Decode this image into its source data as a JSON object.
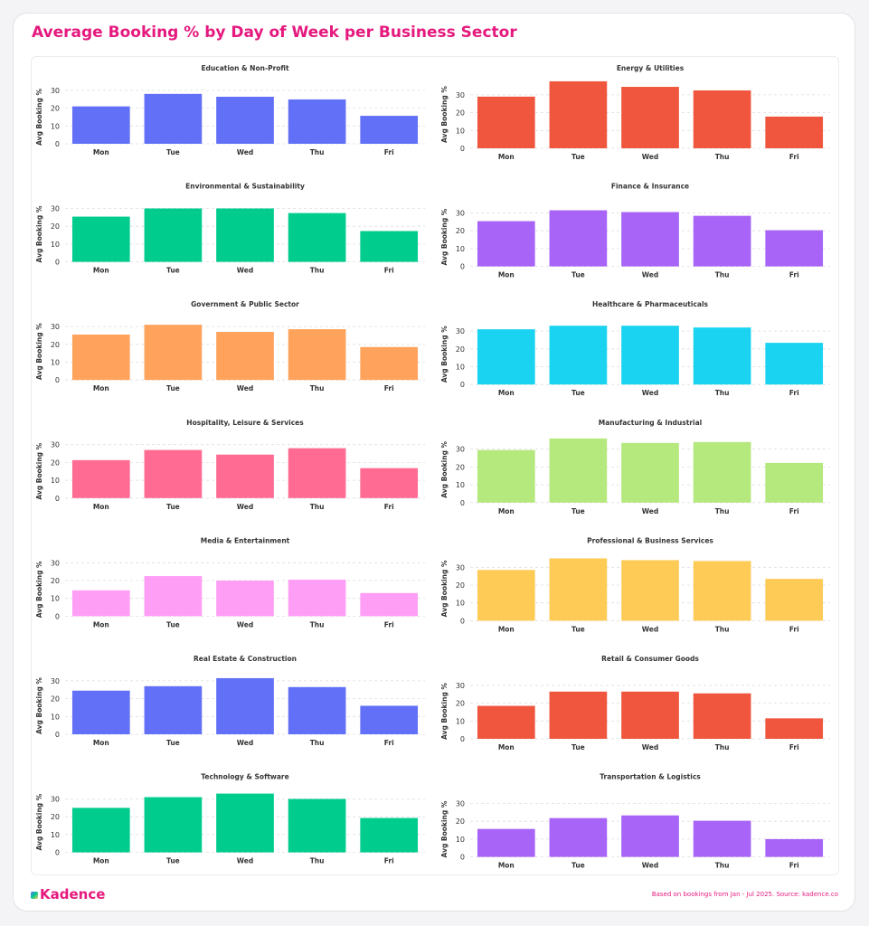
{
  "title": "Average Booking % by Day of Week per Business Sector",
  "footer": {
    "logo": "Kadence",
    "note": "Based on bookings from Jan - Jul 2025. Source: kadence.co"
  },
  "chart_data": [
    {
      "type": "bar",
      "title": "Education & Non-Profit",
      "y_label": "Avg Booking %",
      "categories": [
        "Mon",
        "Tue",
        "Wed",
        "Thu",
        "Fri"
      ],
      "values": [
        21,
        28,
        26.4,
        24.9,
        15.7
      ],
      "color": "#6170f6",
      "ylim": [
        0,
        30
      ],
      "yticks": [
        0,
        10,
        20,
        30
      ],
      "grid": true
    },
    {
      "type": "bar",
      "title": "Energy & Utilities",
      "y_label": "Avg Booking %",
      "categories": [
        "Mon",
        "Tue",
        "Wed",
        "Thu",
        "Fri"
      ],
      "values": [
        29,
        37.6,
        34.5,
        32.5,
        17.8
      ],
      "color": "#f0563d",
      "ylim": [
        0,
        38
      ],
      "yticks": [
        0,
        10,
        20,
        30
      ],
      "grid": true
    },
    {
      "type": "bar",
      "title": "Environmental & Sustainability",
      "y_label": "Avg Booking %",
      "categories": [
        "Mon",
        "Tue",
        "Wed",
        "Thu",
        "Fri"
      ],
      "values": [
        25.4,
        30,
        30,
        27.4,
        17.3
      ],
      "color": "#00cc8e",
      "ylim": [
        0,
        31
      ],
      "yticks": [
        0,
        10,
        20,
        30
      ],
      "grid": true
    },
    {
      "type": "bar",
      "title": "Finance & Insurance",
      "y_label": "Avg Booking %",
      "categories": [
        "Mon",
        "Tue",
        "Wed",
        "Thu",
        "Fri"
      ],
      "values": [
        25.4,
        31.5,
        30.5,
        28.4,
        20.3
      ],
      "color": "#a764f7",
      "ylim": [
        0,
        33
      ],
      "yticks": [
        0,
        10,
        20,
        30
      ],
      "grid": true
    },
    {
      "type": "bar",
      "title": "Government & Public Sector",
      "y_label": "Avg Booking %",
      "categories": [
        "Mon",
        "Tue",
        "Wed",
        "Thu",
        "Fri"
      ],
      "values": [
        25.5,
        31,
        27,
        28.5,
        18.5
      ],
      "color": "#ffa35c",
      "ylim": [
        0,
        32
      ],
      "yticks": [
        0,
        10,
        20,
        30
      ],
      "grid": true
    },
    {
      "type": "bar",
      "title": "Healthcare & Pharmaceuticals",
      "y_label": "Avg Booking %",
      "categories": [
        "Mon",
        "Tue",
        "Wed",
        "Thu",
        "Fri"
      ],
      "values": [
        31,
        33,
        33,
        32,
        23.4
      ],
      "color": "#1ad3f0",
      "ylim": [
        0,
        34
      ],
      "yticks": [
        0,
        10,
        20,
        30
      ],
      "grid": true
    },
    {
      "type": "bar",
      "title": "Hospitality, Leisure & Services",
      "y_label": "Avg Booking %",
      "categories": [
        "Mon",
        "Tue",
        "Wed",
        "Thu",
        "Fri"
      ],
      "values": [
        21.3,
        27,
        24.4,
        28,
        16.8
      ],
      "color": "#ff6b93",
      "ylim": [
        0,
        30
      ],
      "yticks": [
        0,
        10,
        20,
        30
      ],
      "grid": true
    },
    {
      "type": "bar",
      "title": "Manufacturing & Industrial",
      "y_label": "Avg Booking %",
      "categories": [
        "Mon",
        "Tue",
        "Wed",
        "Thu",
        "Fri"
      ],
      "values": [
        29.5,
        36,
        33.5,
        34,
        22.3
      ],
      "color": "#b5e87d",
      "ylim": [
        0,
        37
      ],
      "yticks": [
        0,
        10,
        20,
        30
      ],
      "grid": true
    },
    {
      "type": "bar",
      "title": "Media & Entertainment",
      "y_label": "Avg Booking %",
      "categories": [
        "Mon",
        "Tue",
        "Wed",
        "Thu",
        "Fri"
      ],
      "values": [
        14.5,
        22.5,
        20,
        20.5,
        13
      ],
      "color": "#ff9ef5",
      "ylim": [
        0,
        30
      ],
      "yticks": [
        0,
        10,
        20,
        30
      ],
      "grid": true
    },
    {
      "type": "bar",
      "title": "Professional & Business Services",
      "y_label": "Avg Booking %",
      "categories": [
        "Mon",
        "Tue",
        "Wed",
        "Thu",
        "Fri"
      ],
      "values": [
        28.5,
        35,
        34,
        33.5,
        23.5
      ],
      "color": "#ffcb57",
      "ylim": [
        0,
        36
      ],
      "yticks": [
        0,
        10,
        20,
        30
      ],
      "grid": true
    },
    {
      "type": "bar",
      "title": "Real Estate & Construction",
      "y_label": "Avg Booking %",
      "categories": [
        "Mon",
        "Tue",
        "Wed",
        "Thu",
        "Fri"
      ],
      "values": [
        24.5,
        27,
        31.5,
        26.5,
        16
      ],
      "color": "#6170f6",
      "ylim": [
        0,
        32
      ],
      "yticks": [
        0,
        10,
        20,
        30
      ],
      "grid": true
    },
    {
      "type": "bar",
      "title": "Retail & Consumer Goods",
      "y_label": "Avg Booking %",
      "categories": [
        "Mon",
        "Tue",
        "Wed",
        "Thu",
        "Fri"
      ],
      "values": [
        18.5,
        26.5,
        26.5,
        25.5,
        11.5
      ],
      "color": "#f0563d",
      "ylim": [
        0,
        31
      ],
      "yticks": [
        0,
        10,
        20,
        30
      ],
      "grid": true
    },
    {
      "type": "bar",
      "title": "Technology & Software",
      "y_label": "Avg Booking %",
      "categories": [
        "Mon",
        "Tue",
        "Wed",
        "Thu",
        "Fri"
      ],
      "values": [
        25,
        31,
        33,
        30,
        19.3
      ],
      "color": "#00cc8e",
      "ylim": [
        0,
        34
      ],
      "yticks": [
        0,
        10,
        20,
        30
      ],
      "grid": true
    },
    {
      "type": "bar",
      "title": "Transportation & Logistics",
      "y_label": "Avg Booking %",
      "categories": [
        "Mon",
        "Tue",
        "Wed",
        "Thu",
        "Fri"
      ],
      "values": [
        15.7,
        21.8,
        23.3,
        20.3,
        10
      ],
      "color": "#a764f7",
      "ylim": [
        0,
        31
      ],
      "yticks": [
        0,
        10,
        20,
        30
      ],
      "grid": true
    }
  ]
}
